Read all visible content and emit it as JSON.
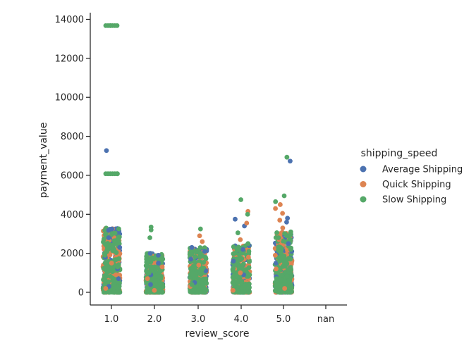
{
  "chart_data": {
    "type": "scatter",
    "subtype": "strip",
    "xlabel": "review_score",
    "ylabel": "payment_value",
    "categories": [
      "1.0",
      "2.0",
      "3.0",
      "4.0",
      "5.0",
      "nan"
    ],
    "yticks": [
      0,
      2000,
      4000,
      6000,
      8000,
      10000,
      12000,
      14000
    ],
    "ylim": [
      -700,
      14400
    ],
    "legend": {
      "title": "shipping_speed",
      "placement": "right"
    },
    "grid": false,
    "series": [
      {
        "name": "Average Shipping",
        "color": "#4c72b0",
        "points": [
          {
            "x": "1.0",
            "y": 7270
          },
          {
            "x": "1.0",
            "y": 3250
          },
          {
            "x": "1.0",
            "y": 3180
          },
          {
            "x": "1.0",
            "y": 2800
          },
          {
            "x": "1.0",
            "y": 2300
          },
          {
            "x": "1.0",
            "y": 1800
          },
          {
            "x": "1.0",
            "y": 1200
          },
          {
            "x": "1.0",
            "y": 700
          },
          {
            "x": "1.0",
            "y": 300
          },
          {
            "x": "2.0",
            "y": 2000
          },
          {
            "x": "2.0",
            "y": 1900
          },
          {
            "x": "2.0",
            "y": 1500
          },
          {
            "x": "2.0",
            "y": 900
          },
          {
            "x": "2.0",
            "y": 400
          },
          {
            "x": "3.0",
            "y": 2300
          },
          {
            "x": "3.0",
            "y": 2100
          },
          {
            "x": "3.0",
            "y": 1700
          },
          {
            "x": "3.0",
            "y": 1100
          },
          {
            "x": "3.0",
            "y": 500
          },
          {
            "x": "4.0",
            "y": 3750
          },
          {
            "x": "4.0",
            "y": 3400
          },
          {
            "x": "4.0",
            "y": 2400
          },
          {
            "x": "4.0",
            "y": 2200
          },
          {
            "x": "4.0",
            "y": 1600
          },
          {
            "x": "4.0",
            "y": 900
          },
          {
            "x": "5.0",
            "y": 6730
          },
          {
            "x": "5.0",
            "y": 3800
          },
          {
            "x": "5.0",
            "y": 3600
          },
          {
            "x": "5.0",
            "y": 2500
          },
          {
            "x": "5.0",
            "y": 2100
          },
          {
            "x": "5.0",
            "y": 1500
          },
          {
            "x": "5.0",
            "y": 800
          }
        ]
      },
      {
        "name": "Quick Shipping",
        "color": "#dd8452",
        "points": [
          {
            "x": "1.0",
            "y": 1500
          },
          {
            "x": "1.0",
            "y": 900
          },
          {
            "x": "1.0",
            "y": 200
          },
          {
            "x": "2.0",
            "y": 1300
          },
          {
            "x": "2.0",
            "y": 700
          },
          {
            "x": "2.0",
            "y": 100
          },
          {
            "x": "3.0",
            "y": 2900
          },
          {
            "x": "3.0",
            "y": 2600
          },
          {
            "x": "3.0",
            "y": 1400
          },
          {
            "x": "3.0",
            "y": 300
          },
          {
            "x": "4.0",
            "y": 4150
          },
          {
            "x": "4.0",
            "y": 3550
          },
          {
            "x": "4.0",
            "y": 2700
          },
          {
            "x": "4.0",
            "y": 1800
          },
          {
            "x": "4.0",
            "y": 1000
          },
          {
            "x": "4.0",
            "y": 100
          },
          {
            "x": "5.0",
            "y": 4500
          },
          {
            "x": "5.0",
            "y": 4300
          },
          {
            "x": "5.0",
            "y": 4050
          },
          {
            "x": "5.0",
            "y": 3700
          },
          {
            "x": "5.0",
            "y": 3300
          },
          {
            "x": "5.0",
            "y": 2700
          },
          {
            "x": "5.0",
            "y": 1900
          },
          {
            "x": "5.0",
            "y": 1200
          },
          {
            "x": "5.0",
            "y": 200
          }
        ]
      },
      {
        "name": "Slow Shipping",
        "color": "#55a868",
        "points": [
          {
            "x": "1.0",
            "y": 13680
          },
          {
            "x": "1.0",
            "y": 6080
          },
          {
            "x": "1.0",
            "y": 2700
          },
          {
            "x": "1.0",
            "y": 2400
          },
          {
            "x": "1.0",
            "y": 1900
          },
          {
            "x": "1.0",
            "y": 1300
          },
          {
            "x": "1.0",
            "y": 600
          },
          {
            "x": "2.0",
            "y": 3350
          },
          {
            "x": "2.0",
            "y": 3200
          },
          {
            "x": "2.0",
            "y": 2800
          },
          {
            "x": "2.0",
            "y": 1700
          },
          {
            "x": "2.0",
            "y": 1000
          },
          {
            "x": "3.0",
            "y": 3250
          },
          {
            "x": "3.0",
            "y": 2000
          },
          {
            "x": "3.0",
            "y": 1200
          },
          {
            "x": "3.0",
            "y": 400
          },
          {
            "x": "4.0",
            "y": 4750
          },
          {
            "x": "4.0",
            "y": 4000
          },
          {
            "x": "4.0",
            "y": 3050
          },
          {
            "x": "4.0",
            "y": 2500
          },
          {
            "x": "4.0",
            "y": 1300
          },
          {
            "x": "5.0",
            "y": 6930
          },
          {
            "x": "5.0",
            "y": 4950
          },
          {
            "x": "5.0",
            "y": 4650
          },
          {
            "x": "5.0",
            "y": 3100
          },
          {
            "x": "5.0",
            "y": 2800
          },
          {
            "x": "5.0",
            "y": 2200
          },
          {
            "x": "5.0",
            "y": 1600
          },
          {
            "x": "5.0",
            "y": 700
          }
        ],
        "repeated_value_groups": [
          {
            "x": "1.0",
            "y": 13680,
            "count": 6
          },
          {
            "x": "1.0",
            "y": 6080,
            "count": 6
          }
        ]
      }
    ],
    "density_note": "dense overlapping points from 0 to about 3300 in each category 1.0–5.0"
  }
}
